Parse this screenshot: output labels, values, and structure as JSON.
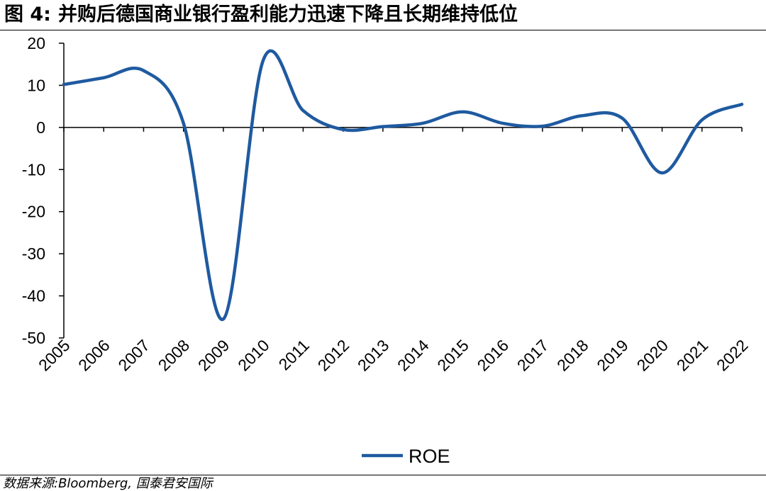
{
  "header": {
    "figure_label": "图 4:",
    "title": "并购后德国商业银行盈利能力迅速下降且长期维持低位"
  },
  "footer": {
    "source": "数据来源:Bloomberg, 国泰君安国际"
  },
  "chart_data": {
    "type": "line",
    "categories": [
      "2005",
      "2006",
      "2007",
      "2008",
      "2009",
      "2010",
      "2011",
      "2012",
      "2013",
      "2014",
      "2015",
      "2016",
      "2017",
      "2018",
      "2019",
      "2020",
      "2021",
      "2022"
    ],
    "series": [
      {
        "name": "ROE",
        "color": "#1f5aa0",
        "values": [
          10.2,
          11.8,
          13.5,
          1.0,
          -45.5,
          16.0,
          4.0,
          -0.5,
          0.2,
          1.0,
          3.7,
          1.0,
          0.3,
          2.8,
          2.2,
          -10.8,
          1.8,
          5.5
        ]
      }
    ],
    "ylim": [
      -50,
      20
    ],
    "yticks": [
      20,
      10,
      0,
      -10,
      -20,
      -30,
      -40,
      -50
    ],
    "grid": false,
    "legend_position": "bottom-center",
    "xlabel": "",
    "ylabel": ""
  }
}
